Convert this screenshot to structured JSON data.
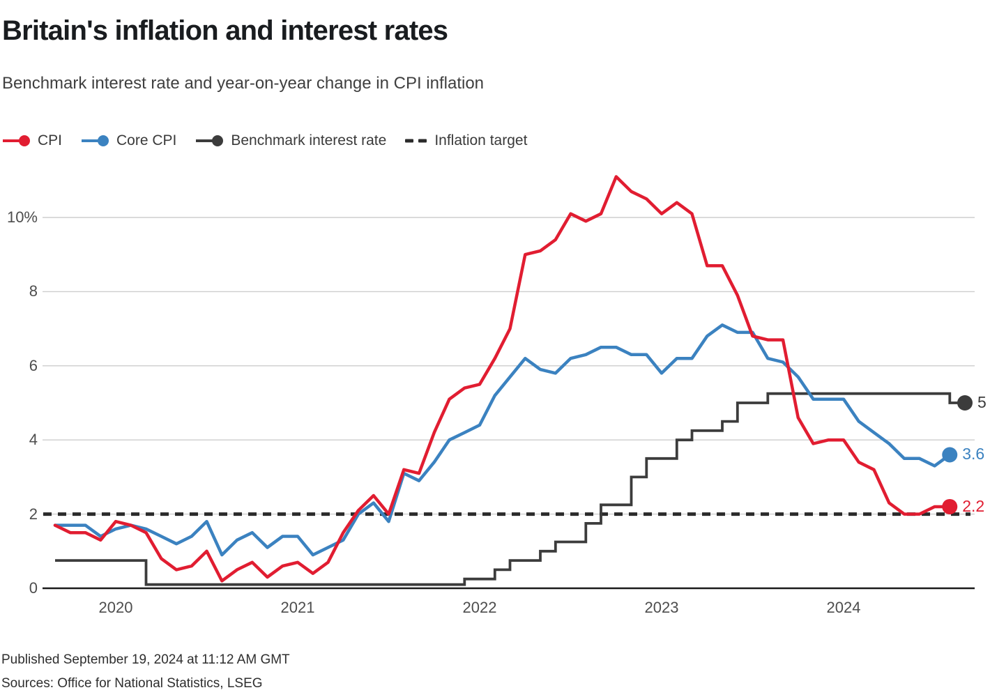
{
  "title": "Britain's inflation and interest rates",
  "subtitle": "Benchmark interest rate and year-on-year change in CPI inflation",
  "legend": [
    {
      "label": "CPI",
      "marker": "line-dot",
      "color": "#e11d31"
    },
    {
      "label": "Core CPI",
      "marker": "line-dot",
      "color": "#3b82c0"
    },
    {
      "label": "Benchmark interest rate",
      "marker": "line-dot",
      "color": "#3c3c3c"
    },
    {
      "label": "Inflation target",
      "marker": "dashes",
      "color": "#2b2b2b"
    }
  ],
  "footer": {
    "published": "Published September 19, 2024 at 11:12 AM GMT",
    "sources": "Sources: Office for National Statistics, LSEG"
  },
  "chart_data": {
    "type": "line",
    "title": "Britain's inflation and interest rates",
    "subtitle": "Benchmark interest rate and year-on-year change in CPI inflation",
    "frequency": "monthly",
    "x_start": "2019-09",
    "x_end": "2024-08",
    "ylim": [
      0,
      11.5
    ],
    "grid": "horizontal",
    "legend_position": "top",
    "y_ticks": [
      {
        "value": 0,
        "label": "0"
      },
      {
        "value": 2,
        "label": "2"
      },
      {
        "value": 4,
        "label": "4"
      },
      {
        "value": 6,
        "label": "6"
      },
      {
        "value": 8,
        "label": "8"
      },
      {
        "value": 10,
        "label": "10%"
      }
    ],
    "x_ticks": [
      {
        "label": "2020",
        "month_index": 4
      },
      {
        "label": "2021",
        "month_index": 16
      },
      {
        "label": "2022",
        "month_index": 28
      },
      {
        "label": "2023",
        "month_index": 40
      },
      {
        "label": "2024",
        "month_index": 52
      }
    ],
    "inflation_target": {
      "value": 2,
      "label": "Inflation target",
      "color": "#2b2b2b"
    },
    "series": [
      {
        "name": "Benchmark interest rate",
        "color": "#3c3c3c",
        "style": "step-after",
        "end_label": "5",
        "values": [
          0.75,
          0.75,
          0.75,
          0.75,
          0.75,
          0.75,
          0.1,
          0.1,
          0.1,
          0.1,
          0.1,
          0.1,
          0.1,
          0.1,
          0.1,
          0.1,
          0.1,
          0.1,
          0.1,
          0.1,
          0.1,
          0.1,
          0.1,
          0.1,
          0.1,
          0.1,
          0.1,
          0.25,
          0.25,
          0.5,
          0.75,
          0.75,
          1.0,
          1.25,
          1.25,
          1.75,
          2.25,
          2.25,
          3.0,
          3.5,
          3.5,
          4.0,
          4.25,
          4.25,
          4.5,
          5.0,
          5.0,
          5.25,
          5.25,
          5.25,
          5.25,
          5.25,
          5.25,
          5.25,
          5.25,
          5.25,
          5.25,
          5.25,
          5.25,
          5.0
        ]
      },
      {
        "name": "Core CPI",
        "color": "#3b82c0",
        "style": "line",
        "end_label": "3.6",
        "values": [
          1.7,
          1.7,
          1.7,
          1.4,
          1.6,
          1.7,
          1.6,
          1.4,
          1.2,
          1.4,
          1.8,
          0.9,
          1.3,
          1.5,
          1.1,
          1.4,
          1.4,
          0.9,
          1.1,
          1.3,
          2.0,
          2.3,
          1.8,
          3.1,
          2.9,
          3.4,
          4.0,
          4.2,
          4.4,
          5.2,
          5.7,
          6.2,
          5.9,
          5.8,
          6.2,
          6.3,
          6.5,
          6.5,
          6.3,
          6.3,
          5.8,
          6.2,
          6.2,
          6.8,
          7.1,
          6.9,
          6.9,
          6.2,
          6.1,
          5.7,
          5.1,
          5.1,
          5.1,
          4.5,
          4.2,
          3.9,
          3.5,
          3.5,
          3.3,
          3.6
        ]
      },
      {
        "name": "CPI",
        "color": "#e11d31",
        "style": "line",
        "end_label": "2.2",
        "values": [
          1.7,
          1.5,
          1.5,
          1.3,
          1.8,
          1.7,
          1.5,
          0.8,
          0.5,
          0.6,
          1.0,
          0.2,
          0.5,
          0.7,
          0.3,
          0.6,
          0.7,
          0.4,
          0.7,
          1.5,
          2.1,
          2.5,
          2.0,
          3.2,
          3.1,
          4.2,
          5.1,
          5.4,
          5.5,
          6.2,
          7.0,
          9.0,
          9.1,
          9.4,
          10.1,
          9.9,
          10.1,
          11.1,
          10.7,
          10.5,
          10.1,
          10.4,
          10.1,
          8.7,
          8.7,
          7.9,
          6.8,
          6.7,
          6.7,
          4.6,
          3.9,
          4.0,
          4.0,
          3.4,
          3.2,
          2.3,
          2.0,
          2.0,
          2.2,
          2.2
        ]
      }
    ]
  }
}
